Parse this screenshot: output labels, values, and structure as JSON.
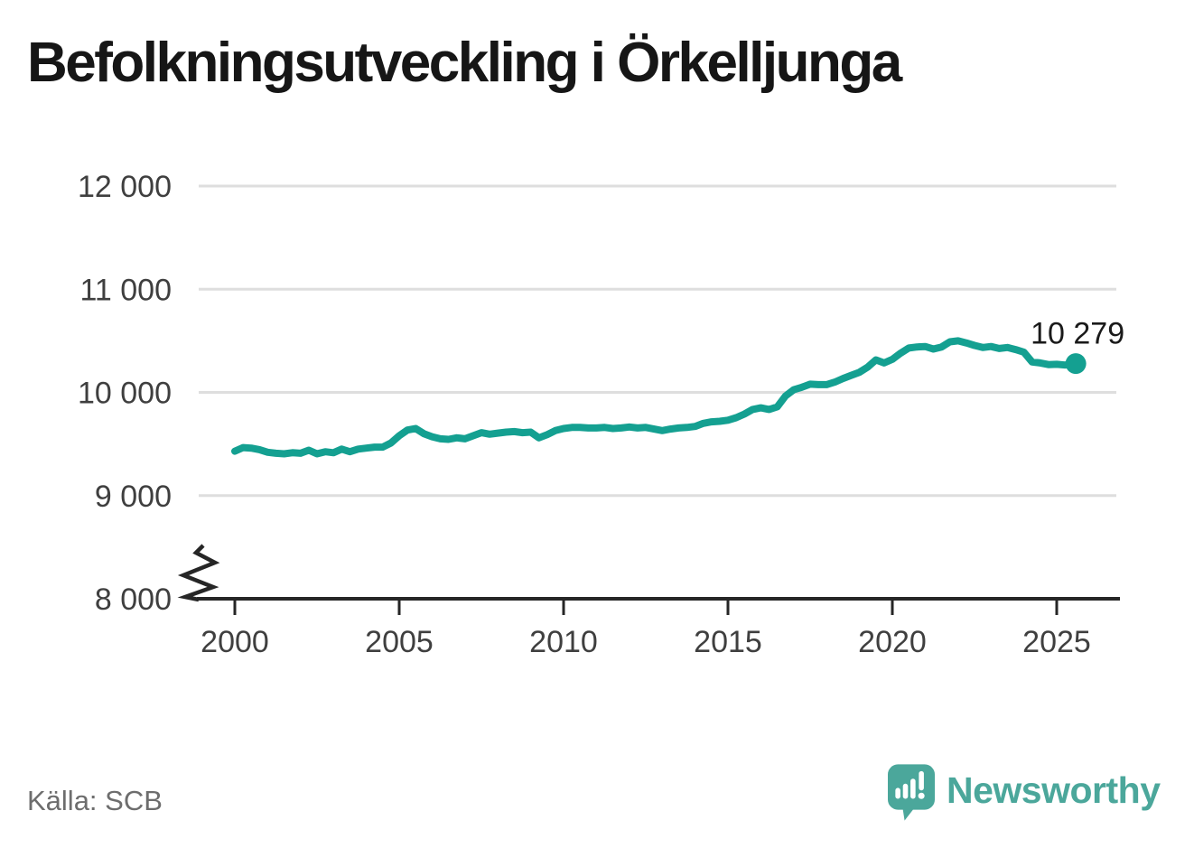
{
  "page": {
    "title": "Befolkningsutveckling i Örkelljunga",
    "source": "Källa: SCB",
    "background": "#ffffff"
  },
  "branding": {
    "logo_text": "Newsworthy",
    "logo_color": "#4BA79B",
    "logo_icon": "newsworthy-speech-bubble-bar-chart-icon"
  },
  "chart_data": {
    "type": "line",
    "title": "Befolkningsutveckling i Örkelljunga",
    "xlabel": "",
    "ylabel": "",
    "grid": "horizontal-only",
    "legend": "none",
    "broken_y_axis": true,
    "x_range": [
      2000,
      2025.58
    ],
    "y_range": [
      8000,
      12000
    ],
    "colors": {
      "line": "#14A091",
      "axis": "#262626",
      "grid": "#DEDEDE",
      "tick_text": "#3F3F3F",
      "annotation_text": "#1A1A1A"
    },
    "y_ticks": [
      {
        "value": 8000,
        "label": "8 000"
      },
      {
        "value": 9000,
        "label": "9 000"
      },
      {
        "value": 10000,
        "label": "10 000"
      },
      {
        "value": 11000,
        "label": "11 000"
      },
      {
        "value": 12000,
        "label": "12 000"
      }
    ],
    "x_ticks": [
      {
        "value": 2000,
        "label": "2000"
      },
      {
        "value": 2005,
        "label": "2005"
      },
      {
        "value": 2010,
        "label": "2010"
      },
      {
        "value": 2015,
        "label": "2015"
      },
      {
        "value": 2020,
        "label": "2020"
      },
      {
        "value": 2025,
        "label": "2025"
      }
    ],
    "end_annotation": {
      "label": "10 279",
      "value": 10279
    },
    "series": [
      {
        "name": "Befolkning",
        "color": "#14A091",
        "points": [
          [
            2000,
            9430
          ],
          [
            2000.25,
            9465
          ],
          [
            2000.5,
            9460
          ],
          [
            2000.75,
            9445
          ],
          [
            2001,
            9420
          ],
          [
            2001.25,
            9410
          ],
          [
            2001.5,
            9405
          ],
          [
            2001.75,
            9415
          ],
          [
            2002,
            9410
          ],
          [
            2002.25,
            9440
          ],
          [
            2002.5,
            9405
          ],
          [
            2002.75,
            9425
          ],
          [
            2003,
            9415
          ],
          [
            2003.25,
            9450
          ],
          [
            2003.5,
            9425
          ],
          [
            2003.75,
            9450
          ],
          [
            2004,
            9460
          ],
          [
            2004.25,
            9470
          ],
          [
            2004.5,
            9470
          ],
          [
            2004.75,
            9510
          ],
          [
            2005,
            9580
          ],
          [
            2005.25,
            9635
          ],
          [
            2005.5,
            9650
          ],
          [
            2005.75,
            9600
          ],
          [
            2006,
            9570
          ],
          [
            2006.25,
            9550
          ],
          [
            2006.5,
            9545
          ],
          [
            2006.75,
            9560
          ],
          [
            2007,
            9550
          ],
          [
            2007.25,
            9580
          ],
          [
            2007.5,
            9610
          ],
          [
            2007.75,
            9595
          ],
          [
            2008,
            9605
          ],
          [
            2008.25,
            9615
          ],
          [
            2008.5,
            9620
          ],
          [
            2008.75,
            9610
          ],
          [
            2009,
            9615
          ],
          [
            2009.25,
            9560
          ],
          [
            2009.5,
            9590
          ],
          [
            2009.75,
            9630
          ],
          [
            2010,
            9650
          ],
          [
            2010.25,
            9660
          ],
          [
            2010.5,
            9660
          ],
          [
            2010.75,
            9655
          ],
          [
            2011,
            9655
          ],
          [
            2011.25,
            9660
          ],
          [
            2011.5,
            9650
          ],
          [
            2011.75,
            9655
          ],
          [
            2012,
            9665
          ],
          [
            2012.25,
            9655
          ],
          [
            2012.5,
            9660
          ],
          [
            2012.75,
            9645
          ],
          [
            2013,
            9630
          ],
          [
            2013.25,
            9645
          ],
          [
            2013.5,
            9655
          ],
          [
            2013.75,
            9660
          ],
          [
            2014,
            9670
          ],
          [
            2014.25,
            9700
          ],
          [
            2014.5,
            9715
          ],
          [
            2014.75,
            9720
          ],
          [
            2015,
            9730
          ],
          [
            2015.25,
            9755
          ],
          [
            2015.5,
            9790
          ],
          [
            2015.75,
            9835
          ],
          [
            2016,
            9850
          ],
          [
            2016.25,
            9835
          ],
          [
            2016.5,
            9860
          ],
          [
            2016.75,
            9965
          ],
          [
            2017,
            10025
          ],
          [
            2017.25,
            10050
          ],
          [
            2017.5,
            10080
          ],
          [
            2017.75,
            10075
          ],
          [
            2018,
            10075
          ],
          [
            2018.25,
            10100
          ],
          [
            2018.5,
            10135
          ],
          [
            2018.75,
            10165
          ],
          [
            2019,
            10195
          ],
          [
            2019.25,
            10245
          ],
          [
            2019.5,
            10315
          ],
          [
            2019.75,
            10285
          ],
          [
            2020,
            10320
          ],
          [
            2020.25,
            10380
          ],
          [
            2020.5,
            10430
          ],
          [
            2020.75,
            10440
          ],
          [
            2021,
            10445
          ],
          [
            2021.25,
            10420
          ],
          [
            2021.5,
            10440
          ],
          [
            2021.75,
            10490
          ],
          [
            2022,
            10500
          ],
          [
            2022.25,
            10480
          ],
          [
            2022.5,
            10455
          ],
          [
            2022.75,
            10435
          ],
          [
            2023,
            10445
          ],
          [
            2023.25,
            10425
          ],
          [
            2023.5,
            10435
          ],
          [
            2023.75,
            10415
          ],
          [
            2024,
            10390
          ],
          [
            2024.25,
            10295
          ],
          [
            2024.5,
            10285
          ],
          [
            2024.75,
            10270
          ],
          [
            2025,
            10272
          ],
          [
            2025.25,
            10265
          ],
          [
            2025.58,
            10279
          ]
        ]
      }
    ]
  }
}
